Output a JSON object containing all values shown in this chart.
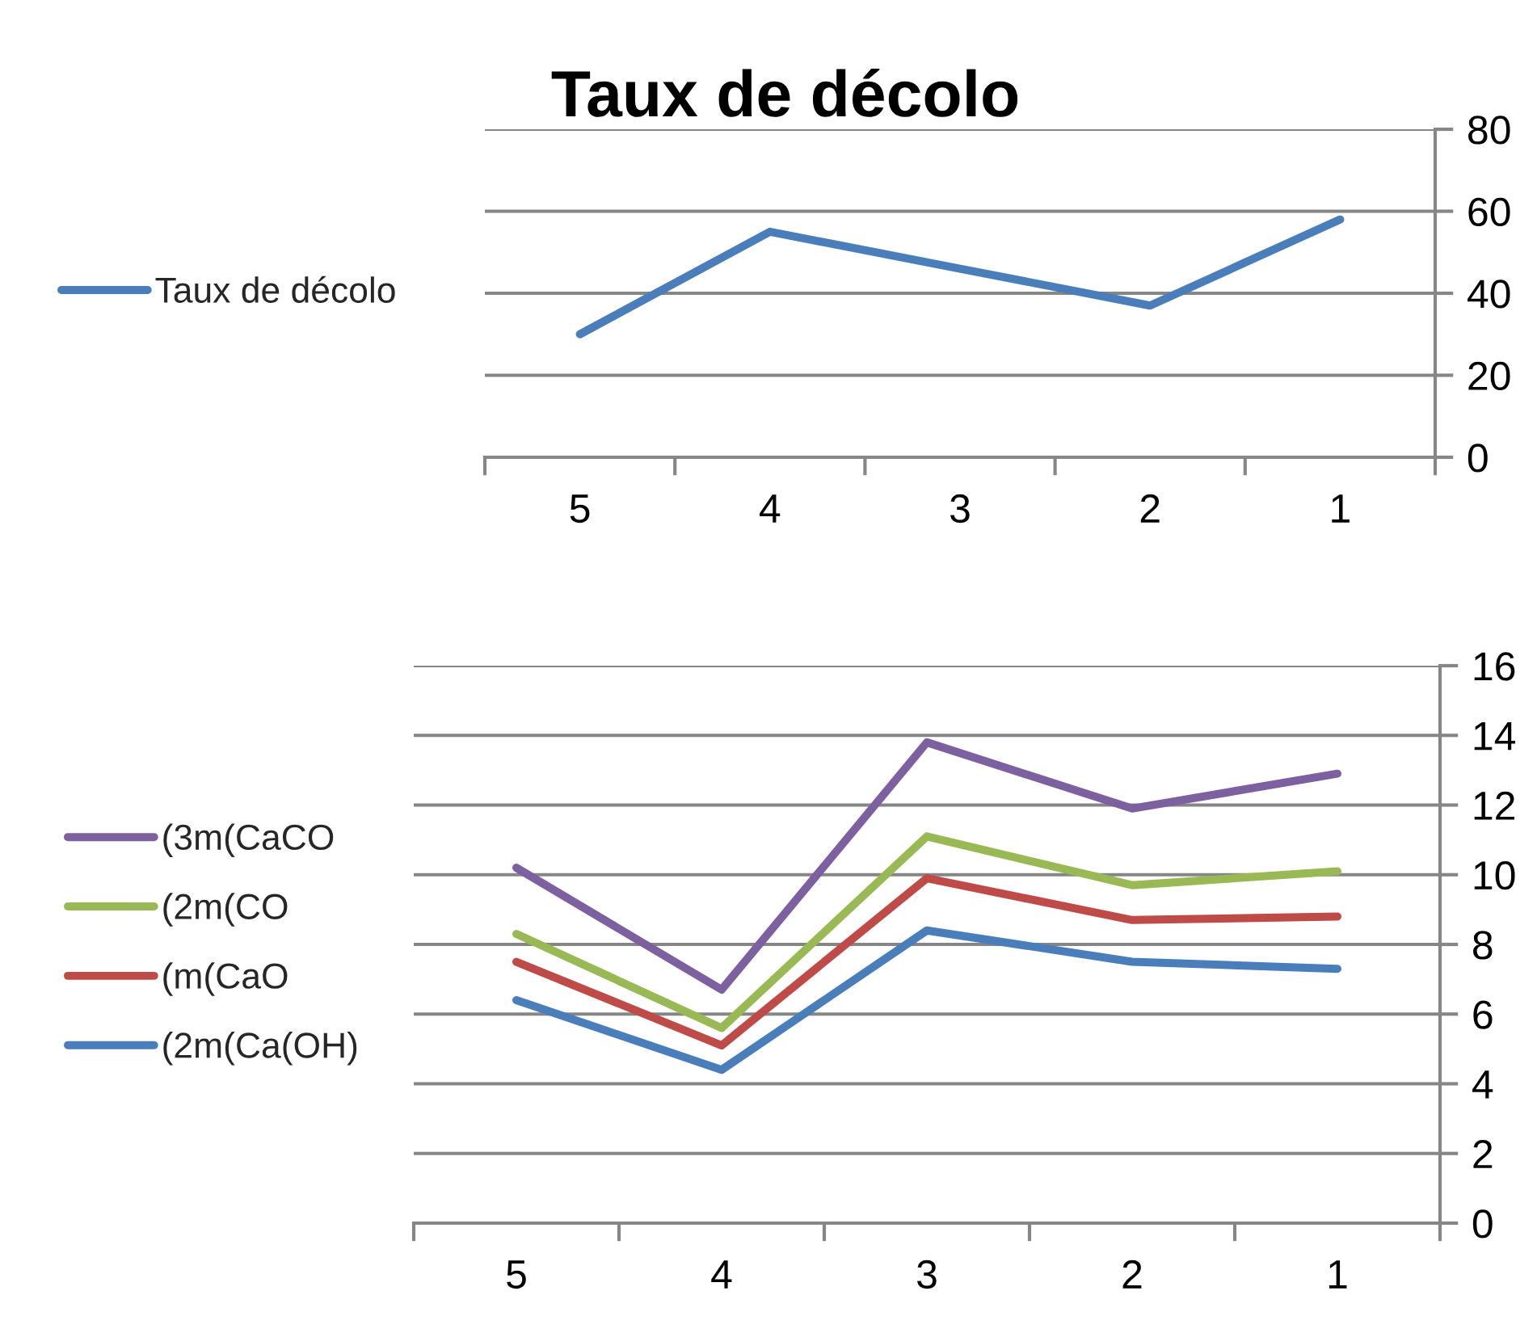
{
  "chart_data": [
    {
      "type": "line",
      "title": "Taux de décolo",
      "categories": [
        "5",
        "4",
        "3",
        "2",
        "1"
      ],
      "series": [
        {
          "name": "Taux de décolo",
          "color": "#4a7ebb",
          "values": [
            30,
            55,
            46,
            37,
            58
          ]
        }
      ],
      "ylim": [
        0,
        80
      ],
      "yticks": [
        0,
        20,
        40,
        60,
        80
      ],
      "grid": "y",
      "legend": "left"
    },
    {
      "type": "line",
      "categories": [
        "5",
        "4",
        "3",
        "2",
        "1"
      ],
      "series": [
        {
          "name": "(3m(CaCO",
          "color": "#7d60a0",
          "values": [
            10.2,
            6.7,
            13.8,
            11.9,
            12.9
          ]
        },
        {
          "name": "(2m(CO",
          "color": "#98b954",
          "values": [
            8.3,
            5.6,
            11.1,
            9.7,
            10.1
          ]
        },
        {
          "name": "(m(CaO",
          "color": "#be4b48",
          "values": [
            7.5,
            5.1,
            9.9,
            8.7,
            8.8
          ]
        },
        {
          "name": "(2m(Ca(OH)",
          "color": "#4a7ebb",
          "values": [
            6.4,
            4.4,
            8.4,
            7.5,
            7.3
          ]
        }
      ],
      "ylim": [
        0,
        16
      ],
      "yticks": [
        0,
        2,
        4,
        6,
        8,
        10,
        12,
        14,
        16
      ],
      "grid": "y",
      "legend": "left"
    }
  ]
}
